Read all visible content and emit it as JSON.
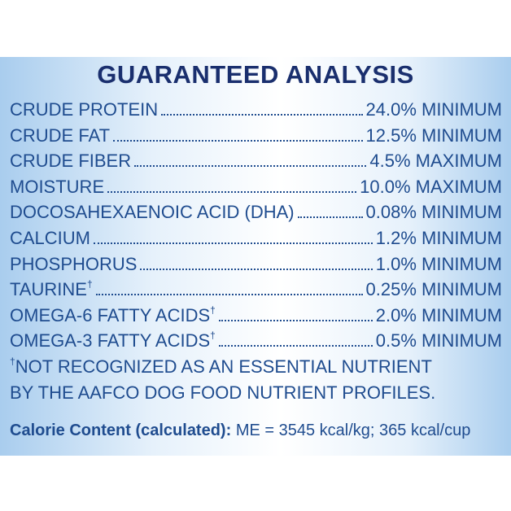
{
  "title": "GUARANTEED ANALYSIS",
  "rows": [
    {
      "name": "CRUDE PROTEIN",
      "value": "24.0% MINIMUM"
    },
    {
      "name": "CRUDE FAT",
      "value": "12.5% MINIMUM"
    },
    {
      "name": "CRUDE FIBER",
      "value": "4.5% MAXIMUM"
    },
    {
      "name": "MOISTURE",
      "value": "10.0% MAXIMUM"
    },
    {
      "name": "DOCOSAHEXAENOIC ACID (DHA)",
      "value": "0.08% MINIMUM"
    },
    {
      "name": "CALCIUM",
      "value": "1.2% MINIMUM"
    },
    {
      "name": "PHOSPHORUS",
      "value": "1.0% MINIMUM"
    },
    {
      "name": "TAURINE",
      "mark": "†",
      "value": "0.25% MINIMUM"
    },
    {
      "name": "OMEGA-6 FATTY ACIDS",
      "mark": "†",
      "value": "2.0% MINIMUM"
    },
    {
      "name": "OMEGA-3 FATTY ACIDS",
      "mark": "†",
      "value": "0.5% MINIMUM"
    }
  ],
  "footnote": {
    "mark": "†",
    "lines": [
      "NOT RECOGNIZED AS AN ESSENTIAL NUTRIENT",
      "BY THE AAFCO DOG FOOD NUTRIENT PROFILES."
    ]
  },
  "calorie": {
    "label": "Calorie Content (calculated):",
    "text": "ME = 3545 kcal/kg; 365 kcal/cup"
  }
}
